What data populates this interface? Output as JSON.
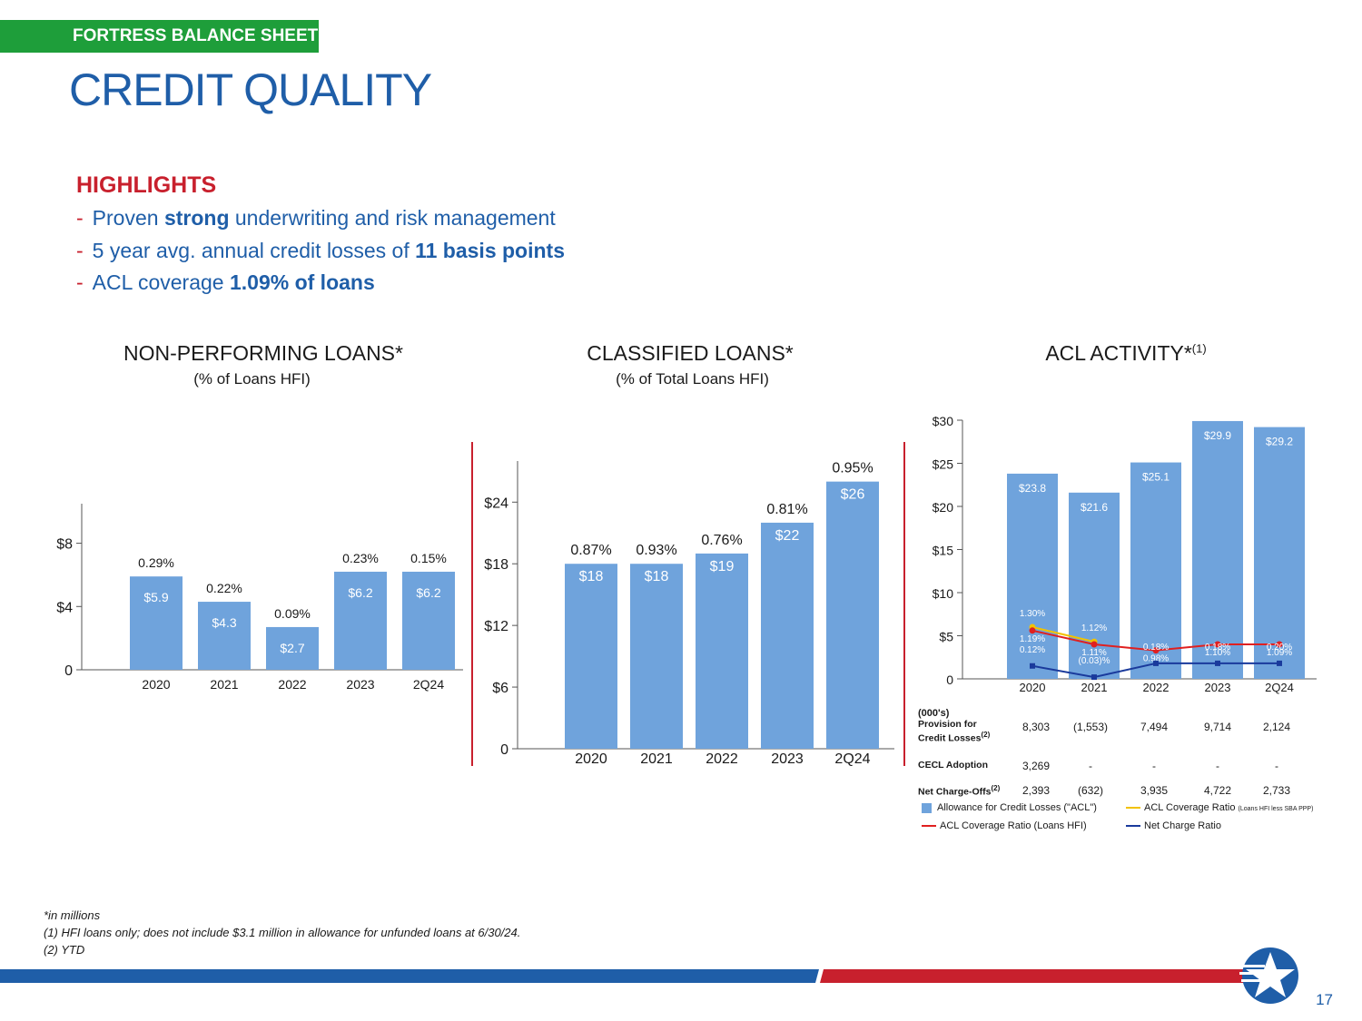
{
  "header": {
    "section_tag": "FORTRESS BALANCE SHEET",
    "title": "CREDIT QUALITY"
  },
  "highlights": {
    "title": "HIGHLIGHTS",
    "items": [
      {
        "dash": "-",
        "pre": "Proven ",
        "bold": "strong",
        "post": " underwriting and risk management"
      },
      {
        "dash": "-",
        "pre": "5 year avg. annual credit losses of ",
        "bold": "11 basis points",
        "post": ""
      },
      {
        "dash": "-",
        "pre": "ACL coverage ",
        "bold": "1.09% of loans",
        "post": ""
      }
    ]
  },
  "chart_data": [
    {
      "type": "bar",
      "title": "NON-PERFORMING LOANS*",
      "subtitle": "(% of Loans HFI)",
      "categories": [
        "2020",
        "2021",
        "2022",
        "2023",
        "2Q24"
      ],
      "values": [
        5.9,
        4.3,
        2.7,
        6.2,
        6.2
      ],
      "value_labels": [
        "$5.9",
        "$4.3",
        "$2.7",
        "$6.2",
        "$6.2"
      ],
      "pct_labels": [
        "0.29%",
        "0.22%",
        "0.09%",
        "0.23%",
        "0.15%"
      ],
      "yticks": [
        0,
        4,
        8
      ],
      "ytick_labels": [
        "0",
        "$4",
        "$8"
      ],
      "ylim": [
        0,
        10.5
      ]
    },
    {
      "type": "bar",
      "title": "CLASSIFIED LOANS*",
      "subtitle": "(% of Total Loans HFI)",
      "categories": [
        "2020",
        "2021",
        "2022",
        "2023",
        "2Q24"
      ],
      "values": [
        18,
        18,
        19,
        22,
        26
      ],
      "value_labels": [
        "$18",
        "$18",
        "$19",
        "$22",
        "$26"
      ],
      "pct_labels": [
        "0.87%",
        "0.93%",
        "0.76%",
        "0.81%",
        "0.95%"
      ],
      "yticks": [
        0,
        6,
        12,
        18,
        24
      ],
      "ytick_labels": [
        "0",
        "$6",
        "$12",
        "$18",
        "$24"
      ],
      "ylim": [
        0,
        28
      ]
    },
    {
      "type": "bar+line",
      "title": "ACL ACTIVITY*",
      "title_sup": "(1)",
      "categories": [
        "2020",
        "2021",
        "2022",
        "2023",
        "2Q24"
      ],
      "values": [
        23.8,
        21.6,
        25.1,
        29.9,
        29.2
      ],
      "value_labels": [
        "$23.8",
        "$21.6",
        "$25.1",
        "$29.9",
        "$29.2"
      ],
      "yticks": [
        0,
        5,
        10,
        15,
        20,
        25,
        30
      ],
      "ytick_labels": [
        "0",
        "$5",
        "$10",
        "$15",
        "$20",
        "$25",
        "$30"
      ],
      "ylim": [
        0,
        30
      ],
      "series": [
        {
          "name": "ACL Coverage Ratio (Loans HFI less SBA PPP)",
          "color": "#f2c200",
          "values": [
            6.0,
            4.3,
            null,
            null,
            null
          ],
          "labels": [
            "1.30%",
            "1.12%",
            "",
            "",
            ""
          ]
        },
        {
          "name": "ACL Coverage Ratio (Loans HFI)",
          "color": "#e02020",
          "values": [
            5.6,
            4.0,
            3.3,
            4.0,
            4.0
          ],
          "labels": [
            "1.19%",
            "1.11%",
            "0.98%",
            "1.10%",
            "1.09%"
          ]
        },
        {
          "name": "Net Charge Ratio",
          "color": "#1a3a9c",
          "values": [
            1.5,
            0.2,
            1.8,
            1.8,
            1.8
          ],
          "labels": [
            "0.12%",
            "(0.03)%",
            "0.18%",
            "0.18%",
            "0.20%"
          ]
        }
      ],
      "table": {
        "header": "(000's)",
        "rows": [
          {
            "label": "Provision for Credit Losses",
            "sup": "(2)",
            "values": [
              "8,303",
              "(1,553)",
              "7,494",
              "9,714",
              "2,124"
            ]
          },
          {
            "label": "CECL Adoption",
            "sup": "",
            "values": [
              "3,269",
              "-",
              "-",
              "-",
              "-"
            ]
          },
          {
            "label": "Net Charge-Offs",
            "sup": "(2)",
            "values": [
              "2,393",
              "(632)",
              "3,935",
              "4,722",
              "2,733"
            ]
          }
        ]
      },
      "legend": [
        {
          "name": "Allowance for Credit Losses (\"ACL\")",
          "kind": "bar",
          "color": "#6fa3dc"
        },
        {
          "name": "ACL Coverage Ratio",
          "small": "(Loans HFI less SBA PPP)",
          "kind": "line",
          "color": "#f2c200"
        },
        {
          "name": "ACL Coverage Ratio (Loans HFI)",
          "kind": "line",
          "color": "#e02020"
        },
        {
          "name": "Net Charge Ratio",
          "kind": "line",
          "color": "#1a3a9c"
        }
      ]
    }
  ],
  "footnotes": [
    "*in millions",
    "(1) HFI loans only; does not include $3.1 million in allowance for unfunded loans at 6/30/24.",
    "(2) YTD"
  ],
  "page_number": "17",
  "colors": {
    "bar": "#6fa3dc",
    "blue": "#1f5ea8",
    "red": "#c8202d",
    "green": "#1e9e3a"
  }
}
